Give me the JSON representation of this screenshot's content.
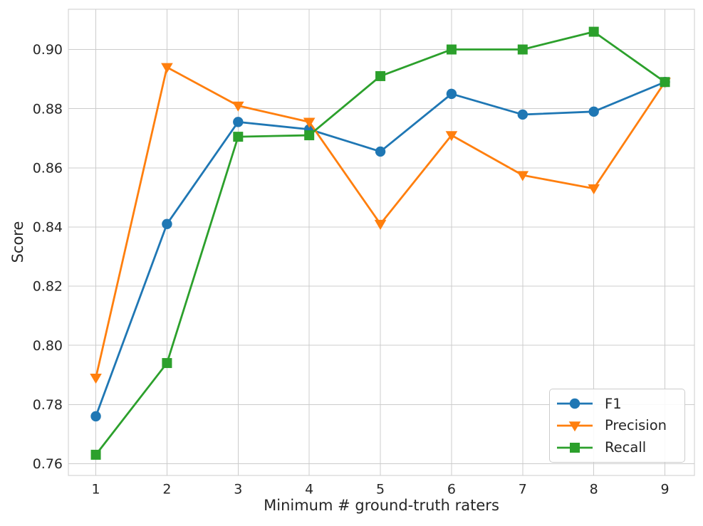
{
  "figure": {
    "background": "#ffffff"
  },
  "chart_data": {
    "type": "line",
    "title": "",
    "xlabel": "Minimum # ground-truth raters",
    "ylabel": "Score",
    "x": [
      1,
      2,
      3,
      4,
      5,
      6,
      7,
      8,
      9
    ],
    "x_tick_labels": [
      "1",
      "2",
      "3",
      "4",
      "5",
      "6",
      "7",
      "8",
      "9"
    ],
    "y_ticks": [
      0.76,
      0.78,
      0.8,
      0.82,
      0.84,
      0.86,
      0.88,
      0.9
    ],
    "y_tick_labels": [
      "0.76",
      "0.78",
      "0.80",
      "0.82",
      "0.84",
      "0.86",
      "0.88",
      "0.90"
    ],
    "xlim": [
      0.614,
      9.415
    ],
    "ylim": [
      0.756,
      0.9136
    ],
    "grid": true,
    "legend": {
      "position": "lower-right",
      "border_color": "#cccccc"
    },
    "colors": {
      "grid": "#cccccc",
      "spine": "#cccccc",
      "text": "#262626",
      "background": "#ffffff"
    },
    "series": [
      {
        "name": "F1",
        "color": "#1f77b4",
        "marker": "circle",
        "values": [
          0.776,
          0.841,
          0.8755,
          0.873,
          0.8655,
          0.885,
          0.878,
          0.879,
          0.889
        ]
      },
      {
        "name": "Precision",
        "color": "#ff7f0e",
        "marker": "triangle-down",
        "values": [
          0.789,
          0.894,
          0.881,
          0.8755,
          0.841,
          0.871,
          0.8575,
          0.853,
          0.889
        ]
      },
      {
        "name": "Recall",
        "color": "#2ca02c",
        "marker": "square",
        "values": [
          0.763,
          0.794,
          0.8705,
          0.871,
          0.891,
          0.9,
          0.9,
          0.906,
          0.889
        ]
      }
    ]
  }
}
